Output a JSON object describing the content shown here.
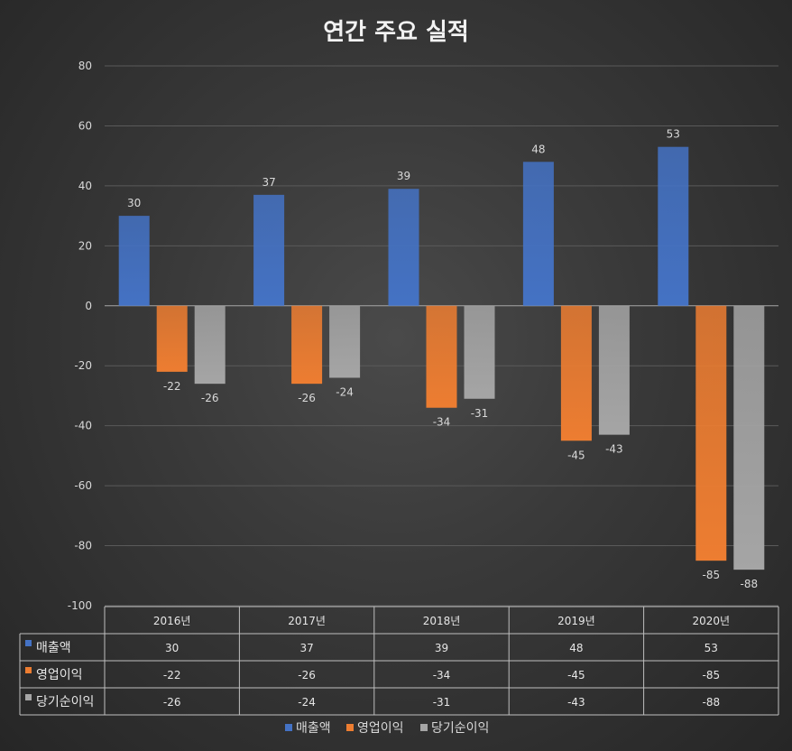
{
  "chart_data": {
    "type": "bar",
    "title": "연간 주요 실적",
    "categories": [
      "2016년",
      "2017년",
      "2018년",
      "2019년",
      "2020년"
    ],
    "series": [
      {
        "name": "매출액",
        "values": [
          30,
          37,
          39,
          48,
          53
        ],
        "color": "#4472c4"
      },
      {
        "name": "영업이익",
        "values": [
          -22,
          -26,
          -34,
          -45,
          -85
        ],
        "color": "#ed7d31"
      },
      {
        "name": "당기순이익",
        "values": [
          -26,
          -24,
          -31,
          -43,
          -88
        ],
        "color": "#a5a5a5"
      }
    ],
    "ylim": [
      -100,
      80
    ],
    "yticks": [
      80,
      60,
      40,
      20,
      0,
      -20,
      -40,
      -60,
      -80,
      -100
    ],
    "data_table": true,
    "legend": "bottom",
    "grid": true
  }
}
